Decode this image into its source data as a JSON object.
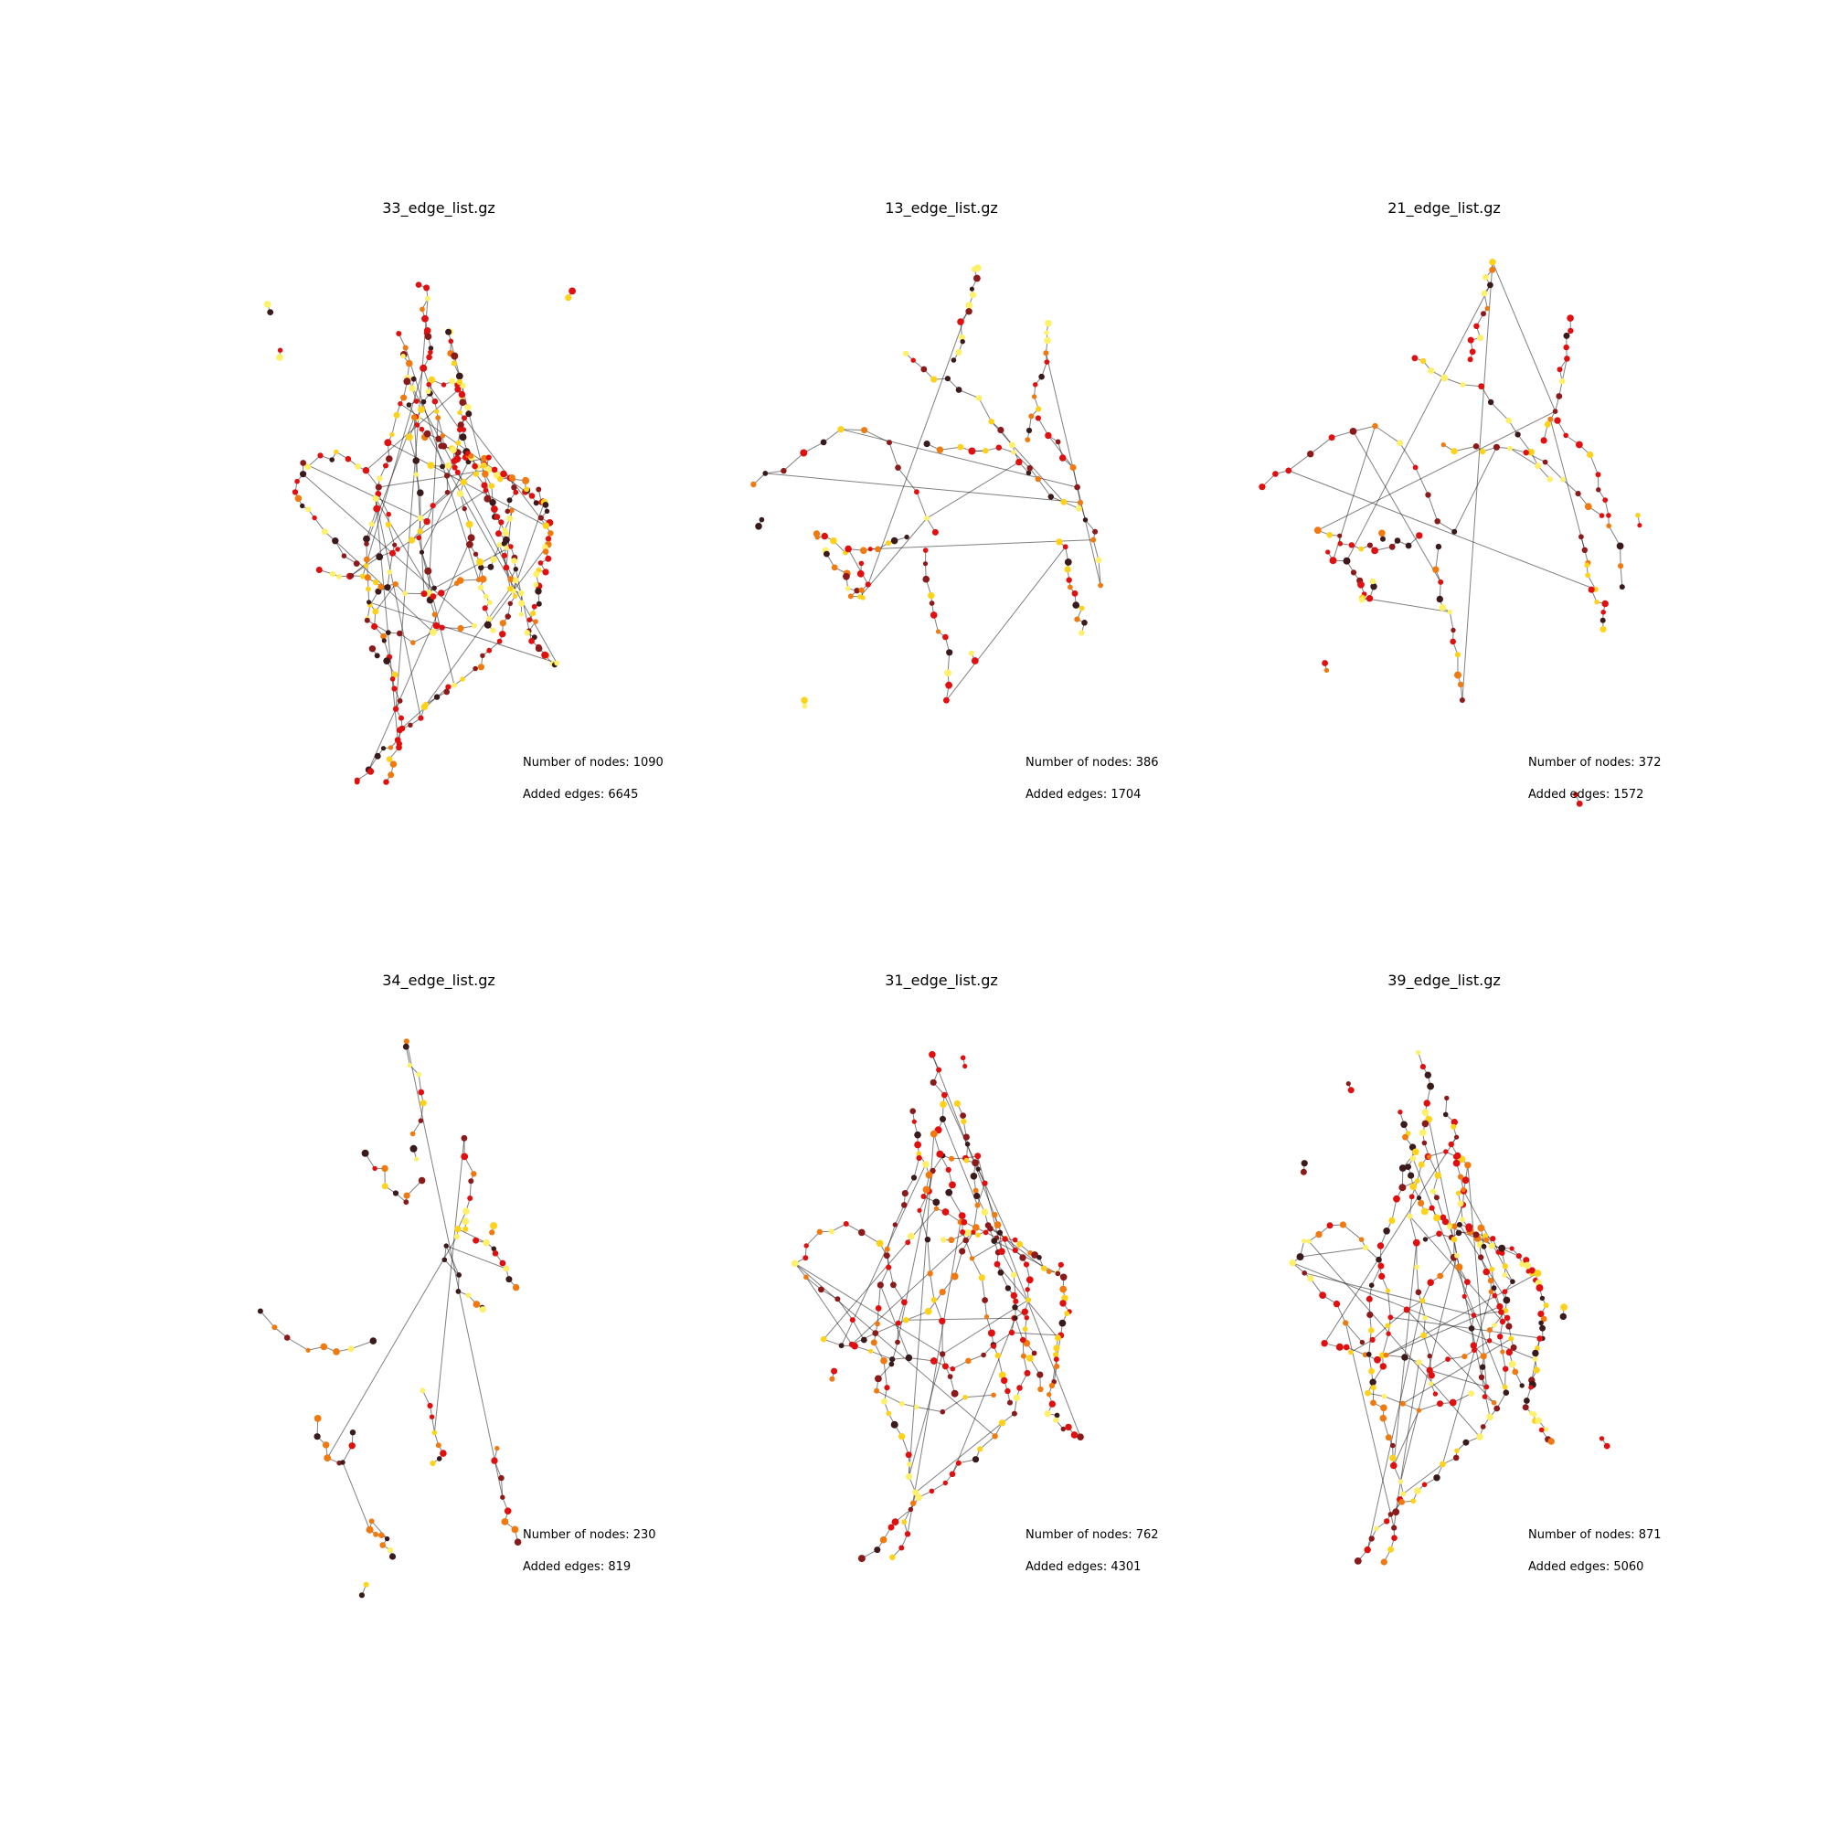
{
  "colors": {
    "background": "#ffffff",
    "edge": "#1a1a1a",
    "node_low": "#3a1a1a",
    "node_midlow": "#8b1a1a",
    "node_mid": "#e01010",
    "node_midhigh": "#f07a10",
    "node_high": "#ffd21a",
    "node_peak": "#fff06a",
    "text": "#000000"
  },
  "panels": [
    {
      "title": "33_edge_list.gz",
      "nodes_label": "Number of nodes: 1090",
      "edges_label": "Added edges: 6645",
      "nodes": 1090,
      "edges": 6645
    },
    {
      "title": "13_edge_list.gz",
      "nodes_label": "Number of nodes: 386",
      "edges_label": "Added edges: 1704",
      "nodes": 386,
      "edges": 1704
    },
    {
      "title": "21_edge_list.gz",
      "nodes_label": "Number of nodes: 372",
      "edges_label": "Added edges: 1572",
      "nodes": 372,
      "edges": 1572
    },
    {
      "title": "34_edge_list.gz",
      "nodes_label": "Number of nodes: 230",
      "edges_label": "Added edges: 819",
      "nodes": 230,
      "edges": 819
    },
    {
      "title": "31_edge_list.gz",
      "nodes_label": "Number of nodes: 762",
      "edges_label": "Added edges: 4301",
      "nodes": 762,
      "edges": 4301
    },
    {
      "title": "39_edge_list.gz",
      "nodes_label": "Number of nodes: 871",
      "edges_label": "Added edges: 5060",
      "nodes": 871,
      "edges": 5060
    }
  ]
}
